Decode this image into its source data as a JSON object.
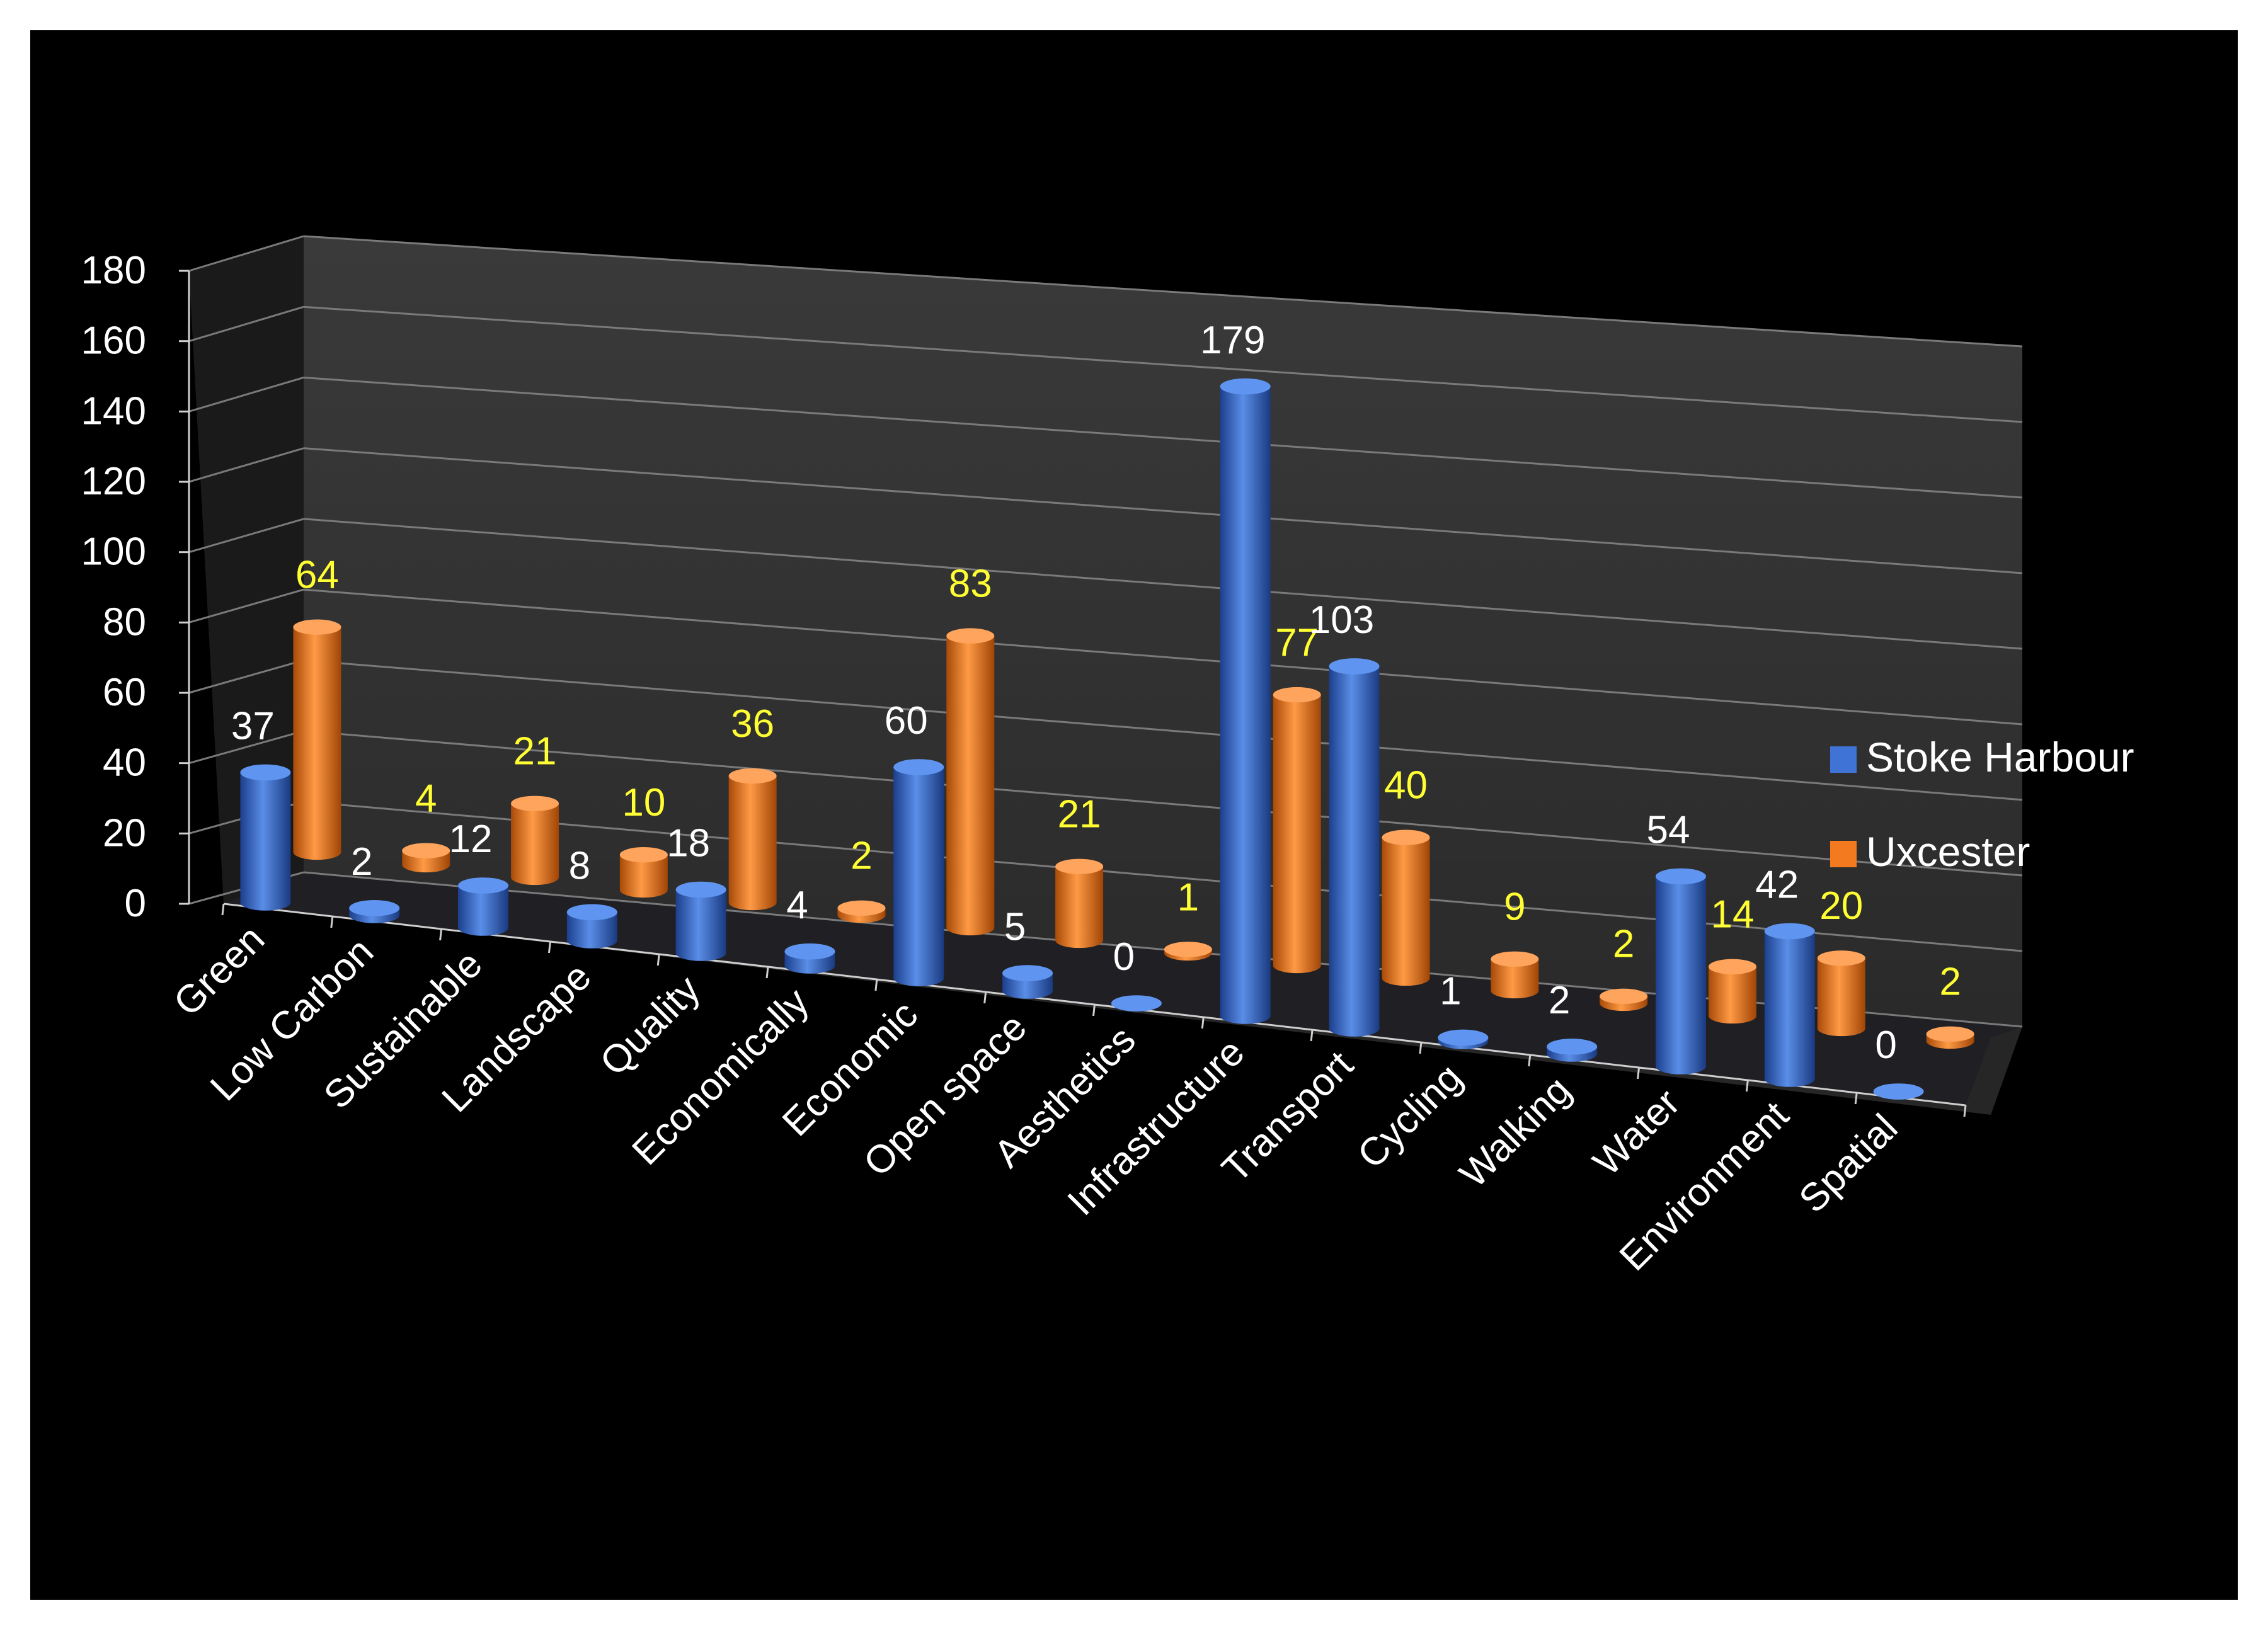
{
  "chart_data": {
    "type": "bar",
    "style": "3d-clustered-cylinder",
    "title": "",
    "xlabel": "",
    "ylabel": "",
    "ylim": [
      0,
      180
    ],
    "yticks": [
      0,
      20,
      40,
      60,
      80,
      100,
      120,
      140,
      160,
      180
    ],
    "grid": true,
    "legend_position": "right",
    "categories": [
      "Green",
      "Low Carbon",
      "Sustainable",
      "Landscape",
      "Quality",
      "Economically",
      "Economic",
      "Open space",
      "Aesthetics",
      "Infrastructure",
      "Transport",
      "Cycling",
      "Walking",
      "Water",
      "Environment",
      "Spatial"
    ],
    "series": [
      {
        "name": "Stoke Harbour",
        "color": "#3f73d6",
        "label_color": "#ffffff",
        "values": [
          37,
          2,
          12,
          8,
          18,
          4,
          60,
          5,
          0,
          179,
          103,
          1,
          2,
          54,
          42,
          0
        ]
      },
      {
        "name": "Uxcester",
        "color": "#f47a1f",
        "label_color": "#ffff33",
        "values": [
          64,
          4,
          21,
          10,
          36,
          2,
          83,
          21,
          1,
          77,
          40,
          9,
          2,
          14,
          20,
          2
        ]
      }
    ]
  }
}
